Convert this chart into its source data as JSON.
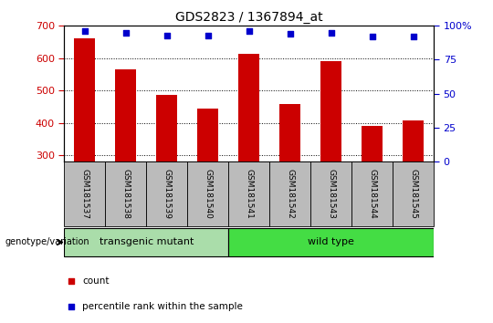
{
  "title": "GDS2823 / 1367894_at",
  "samples": [
    "GSM181537",
    "GSM181538",
    "GSM181539",
    "GSM181540",
    "GSM181541",
    "GSM181542",
    "GSM181543",
    "GSM181544",
    "GSM181545"
  ],
  "counts": [
    660,
    565,
    487,
    443,
    613,
    458,
    590,
    390,
    408
  ],
  "percentiles": [
    96,
    95,
    93,
    93,
    96,
    94,
    95,
    92,
    92
  ],
  "ylim_left": [
    280,
    700
  ],
  "ylim_right": [
    0,
    100
  ],
  "yticks_left": [
    300,
    400,
    500,
    600,
    700
  ],
  "yticks_right": [
    0,
    25,
    50,
    75,
    100
  ],
  "bar_color": "#CC0000",
  "scatter_color": "#0000CC",
  "group_labels": [
    "transgenic mutant",
    "wild type"
  ],
  "group_split": 4,
  "group_color_1": "#AADDAA",
  "group_color_2": "#44DD44",
  "legend_count_color": "#CC0000",
  "legend_pct_color": "#0000CC",
  "xlabel_left": "count",
  "xlabel_right": "percentile rank within the sample",
  "genotype_label": "genotype/variation",
  "right_axis_label_color": "#0000CC",
  "left_axis_label_color": "#CC0000",
  "tick_area_bg": "#BBBBBB",
  "right_ytick_labels": [
    "0",
    "25",
    "50",
    "75",
    "100%"
  ]
}
